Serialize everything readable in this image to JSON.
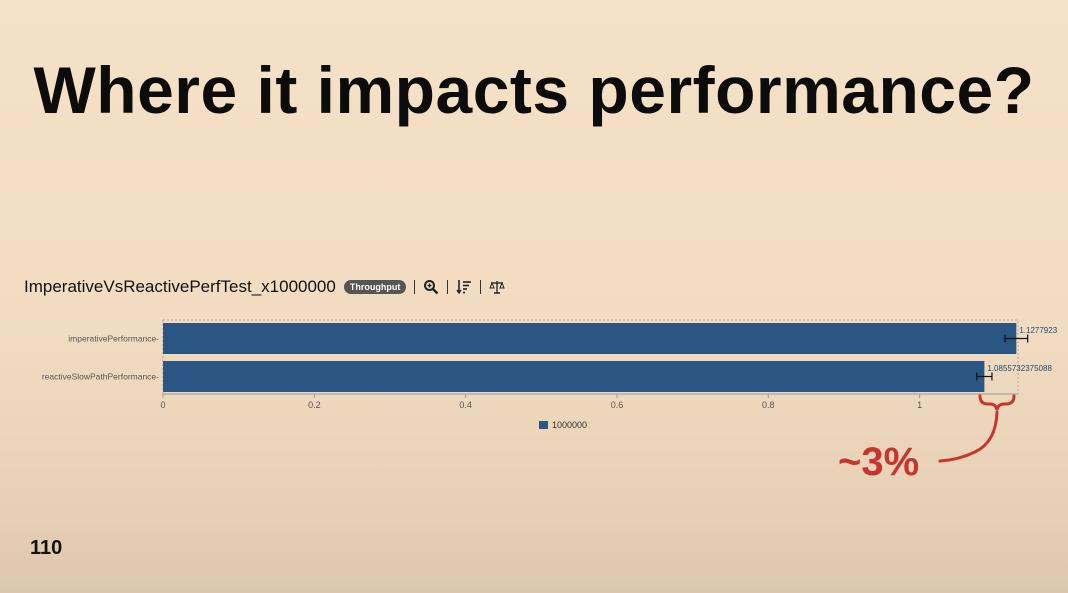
{
  "slide": {
    "title": "Where it impacts performance?",
    "page_number": "110",
    "callout": "~3%",
    "callout_color": "#c8352e"
  },
  "chart_header": {
    "name": "ImperativeVsReactivePerfTest_x1000000",
    "mode_badge": "Throughput",
    "icons": [
      "zoom-icon",
      "sort-icon",
      "balance-icon"
    ]
  },
  "chart_data": {
    "type": "bar",
    "orientation": "horizontal",
    "categories": [
      "imperativePerformance",
      "reactiveSlowPathPerformance"
    ],
    "series": [
      {
        "name": "1000000",
        "color": "#2b5583",
        "values": [
          1.1277923,
          1.0855732375088
        ],
        "value_labels": [
          "1.1277923",
          "1.0855732375088"
        ]
      }
    ],
    "error": [
      0.03,
      0.02
    ],
    "xlim": [
      0,
      1.13
    ],
    "xticks": [
      0,
      0.2,
      0.4,
      0.6,
      0.8,
      1
    ],
    "xtick_labels": [
      "0",
      "0.2",
      "0.4",
      "0.6",
      "0.8",
      "1"
    ],
    "legend_position": "bottom-center"
  }
}
